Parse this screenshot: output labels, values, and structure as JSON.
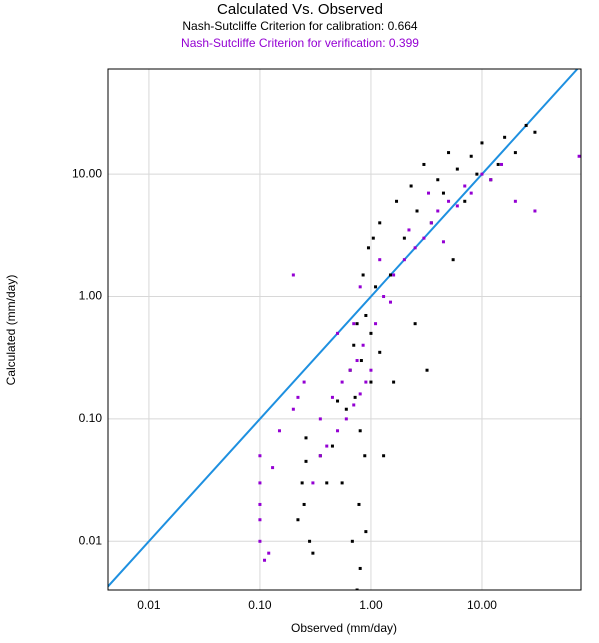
{
  "chart_data": {
    "type": "scatter",
    "title": "Calculated  Vs. Observed",
    "subtitles": [
      {
        "text": "Nash-Sutcliffe Criterion for calibration: 0.664",
        "color": "#000000"
      },
      {
        "text": "Nash-Sutcliffe Criterion for verification: 0.399",
        "color": "#9400d3"
      }
    ],
    "x_label": "Observed (mm/day)",
    "y_label": "Calculated (mm/day)",
    "log_x": true,
    "log_y": true,
    "grid": true,
    "identity_line": {
      "color": "#1e90e0"
    },
    "xlim": [
      0.00428,
      78
    ],
    "ylim": [
      0.004,
      72.3
    ],
    "xticks": [
      0.01,
      {
        "value": 0.1,
        "label": "0.10"
      },
      {
        "value": 1,
        "label": "1.00"
      },
      {
        "value": 10,
        "label": "10.00"
      }
    ],
    "yticks": [
      0.01,
      {
        "value": 0.1,
        "label": "0.10"
      },
      {
        "value": 1,
        "label": "1.00"
      },
      {
        "value": 10,
        "label": "10.00"
      }
    ],
    "series": [
      {
        "color": "#000000",
        "x": [
          0.22,
          0.24,
          0.25,
          0.26,
          0.28,
          0.3,
          0.35,
          0.45,
          0.55,
          0.6,
          0.65,
          0.7,
          0.72,
          0.75,
          0.78,
          0.8,
          0.82,
          0.85,
          0.88,
          0.9,
          0.95,
          1.0,
          1.05,
          1.1,
          1.2,
          1.3,
          1.5,
          1.7,
          2.0,
          2.3,
          2.6,
          3.0,
          3.5,
          4.0,
          4.5,
          5.0,
          6.0,
          7.0,
          8.0,
          9.0,
          10.0,
          12.0,
          14.0,
          16.0,
          20.0,
          25.0,
          30.0,
          0.75,
          0.8,
          0.9,
          1.0,
          1.6,
          2.5,
          5.5,
          1.2,
          0.68,
          3.2,
          0.4,
          0.5,
          0.26
        ],
        "values": [
          0.015,
          0.03,
          0.02,
          0.045,
          0.01,
          0.008,
          0.05,
          0.06,
          0.03,
          0.12,
          0.25,
          0.4,
          0.15,
          0.6,
          0.02,
          0.08,
          0.3,
          1.5,
          0.05,
          0.7,
          2.5,
          0.2,
          3.0,
          1.2,
          4.0,
          0.05,
          1.5,
          6.0,
          3.0,
          8.0,
          5.0,
          12.0,
          4.0,
          9.0,
          7.0,
          15.0,
          11.0,
          6.0,
          14.0,
          10.0,
          18.0,
          9.0,
          12.0,
          20.0,
          15.0,
          25.0,
          22.0,
          0.004,
          0.006,
          0.012,
          0.5,
          0.2,
          0.6,
          2.0,
          0.35,
          0.01,
          0.25,
          0.03,
          0.14,
          0.07
        ]
      },
      {
        "color": "#9400d3",
        "x": [
          0.1,
          0.1,
          0.1,
          0.1,
          0.1,
          0.11,
          0.12,
          0.13,
          0.15,
          0.2,
          0.22,
          0.25,
          0.3,
          0.35,
          0.4,
          0.5,
          0.6,
          0.7,
          0.8,
          0.9,
          1.0,
          0.35,
          0.45,
          0.55,
          0.65,
          0.75,
          0.85,
          1.1,
          1.3,
          1.6,
          2.0,
          2.5,
          3.0,
          3.5,
          4.0,
          5.0,
          6.0,
          7.0,
          8.0,
          10.0,
          12.0,
          15.0,
          20.0,
          30.0,
          75.0,
          0.2,
          0.5,
          0.8,
          1.5,
          2.2,
          3.3,
          4.5,
          0.7,
          1.2
        ],
        "values": [
          0.01,
          0.015,
          0.02,
          0.03,
          0.05,
          0.007,
          0.008,
          0.04,
          0.08,
          0.12,
          0.15,
          0.2,
          0.03,
          0.05,
          0.06,
          0.08,
          0.1,
          0.13,
          0.16,
          0.2,
          0.25,
          0.1,
          0.15,
          0.2,
          0.25,
          0.3,
          0.4,
          0.6,
          1.0,
          1.5,
          2.0,
          2.5,
          3.0,
          4.0,
          5.0,
          6.0,
          5.5,
          8.0,
          7.0,
          10.0,
          9.0,
          12.0,
          6.0,
          5.0,
          14.0,
          1.5,
          0.5,
          1.2,
          0.9,
          3.5,
          7.0,
          2.8,
          0.6,
          2.0
        ]
      }
    ]
  }
}
